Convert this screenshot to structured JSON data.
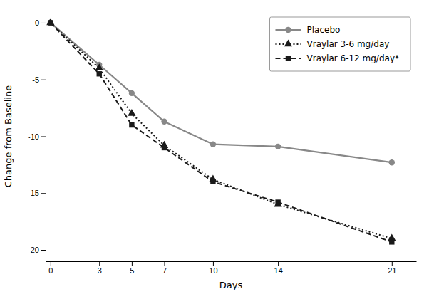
{
  "chart_data": {
    "type": "line",
    "x": [
      0,
      3,
      5,
      7,
      10,
      14,
      21
    ],
    "series": [
      {
        "name": "Placebo",
        "color": "#888888",
        "marker": "circle",
        "line_style": "solid",
        "values": [
          0,
          -3.7,
          -6.2,
          -8.7,
          -10.7,
          -10.9,
          -12.3
        ]
      },
      {
        "name": "Vraylar 3-6 mg/day",
        "color": "#1a1a1a",
        "marker": "triangle",
        "line_style": "dotted",
        "values": [
          0,
          -4.0,
          -8.0,
          -10.8,
          -13.8,
          -16.0,
          -19.0
        ]
      },
      {
        "name": "Vraylar 6-12 mg/day*",
        "color": "#1a1a1a",
        "marker": "square",
        "line_style": "dashed",
        "values": [
          0,
          -4.5,
          -9.0,
          -11.0,
          -14.0,
          -15.8,
          -19.3
        ]
      }
    ],
    "xlabel": "Days",
    "ylabel": "Change from Baseline",
    "xlim": [
      -0.3,
      22.5
    ],
    "ylim": [
      -21,
      1.0
    ],
    "xticks": [
      0,
      3,
      5,
      7,
      10,
      14,
      21
    ],
    "yticks": [
      0,
      -5,
      -10,
      -15,
      -20
    ],
    "legend": "upper right",
    "grid": false
  }
}
